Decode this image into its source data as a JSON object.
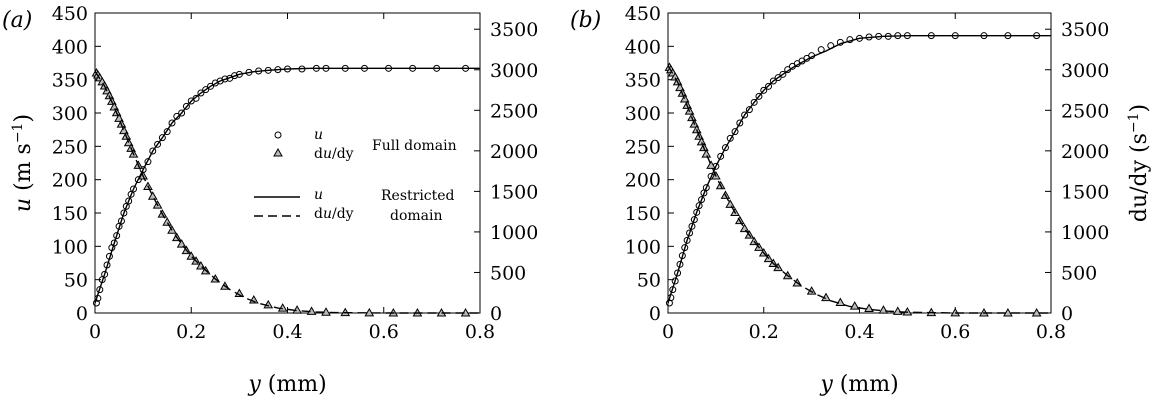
{
  "chart_data": [
    {
      "type": "line",
      "panel_label": "(a)",
      "xlabel_var": "y",
      "xlabel_unit": " (mm)",
      "ylabel_left_var": "u",
      "ylabel_left_unit": " (m s",
      "ylabel_left_sup": "−1",
      "ylabel_left_close": ")",
      "ylabel_right": "",
      "xlim": [
        0,
        0.8
      ],
      "ylim_left": [
        0,
        450
      ],
      "ylim_right": [
        0,
        3700
      ],
      "xticks": [
        "0",
        "0.2",
        "0.4",
        "0.6",
        "0.8"
      ],
      "yticks_left": [
        "0",
        "50",
        "100",
        "150",
        "200",
        "250",
        "300",
        "350",
        "400",
        "450"
      ],
      "yticks_right": [
        "0",
        "500",
        "1000",
        "1500",
        "2000",
        "2500",
        "3000",
        "3500"
      ],
      "u_free": 367,
      "du0": 2960,
      "u_scale": 0.115,
      "du_scale": 0.105,
      "legend": {
        "full_u": "u",
        "full_du": "du/dy",
        "full_label": "Full domain",
        "restricted_u": "u",
        "restricted_du": "du/dy",
        "restricted_label_line1": "Restricted",
        "restricted_label_line2": "domain"
      },
      "series": [
        {
          "name": "u",
          "axis": "left",
          "style": "circle",
          "x": [
            0.003,
            0.006,
            0.01,
            0.015,
            0.02,
            0.025,
            0.03,
            0.035,
            0.04,
            0.045,
            0.05,
            0.055,
            0.06,
            0.065,
            0.07,
            0.075,
            0.08,
            0.09,
            0.1,
            0.11,
            0.12,
            0.13,
            0.14,
            0.15,
            0.16,
            0.17,
            0.18,
            0.19,
            0.2,
            0.21,
            0.22,
            0.23,
            0.24,
            0.25,
            0.26,
            0.27,
            0.28,
            0.29,
            0.3,
            0.32,
            0.34,
            0.36,
            0.38,
            0.4,
            0.43,
            0.46,
            0.48,
            0.52,
            0.56,
            0.61,
            0.66,
            0.71,
            0.77
          ],
          "y": [
            15,
            22,
            35,
            50,
            58,
            72,
            85,
            98,
            105,
            116,
            130,
            138,
            150,
            160,
            168,
            178,
            186,
            200,
            215,
            227,
            243,
            253,
            263,
            272,
            285,
            295,
            300,
            310,
            318,
            322,
            330,
            335,
            340,
            345,
            348,
            351,
            352,
            356,
            358,
            361,
            363,
            364,
            365,
            366,
            366,
            367,
            367,
            367,
            367,
            367,
            367,
            367,
            367
          ]
        },
        {
          "name": "du/dy",
          "axis": "right",
          "style": "triangle",
          "x": [
            0.003,
            0.006,
            0.01,
            0.015,
            0.02,
            0.025,
            0.03,
            0.035,
            0.04,
            0.045,
            0.05,
            0.055,
            0.06,
            0.065,
            0.07,
            0.075,
            0.08,
            0.09,
            0.1,
            0.11,
            0.12,
            0.13,
            0.14,
            0.15,
            0.16,
            0.17,
            0.18,
            0.19,
            0.2,
            0.21,
            0.22,
            0.23,
            0.25,
            0.27,
            0.3,
            0.33,
            0.36,
            0.39,
            0.42,
            0.45,
            0.48,
            0.52,
            0.57,
            0.62,
            0.67,
            0.72,
            0.77
          ],
          "y": [
            2960,
            2935,
            2900,
            2850,
            2800,
            2740,
            2680,
            2610,
            2540,
            2470,
            2400,
            2330,
            2250,
            2180,
            2100,
            2030,
            1960,
            1820,
            1690,
            1560,
            1440,
            1330,
            1220,
            1120,
            1020,
            930,
            850,
            770,
            700,
            640,
            580,
            520,
            420,
            330,
            240,
            160,
            100,
            60,
            35,
            20,
            10,
            5,
            2,
            0,
            0,
            0,
            0
          ]
        },
        {
          "name": "u",
          "axis": "left",
          "style": "solid",
          "x": [
            0,
            0.02,
            0.04,
            0.06,
            0.08,
            0.1,
            0.12,
            0.14,
            0.16,
            0.18,
            0.2,
            0.22,
            0.24,
            0.26,
            0.28,
            0.3,
            0.33,
            0.36,
            0.4,
            0.45,
            0.5,
            0.6,
            0.7,
            0.8
          ],
          "y": [
            15,
            58,
            105,
            150,
            186,
            215,
            243,
            263,
            285,
            300,
            318,
            330,
            340,
            348,
            353,
            358,
            362,
            364,
            366,
            367,
            367,
            367,
            367,
            367
          ]
        },
        {
          "name": "du/dy",
          "axis": "right",
          "style": "dashed",
          "x": [
            0,
            0.02,
            0.04,
            0.06,
            0.08,
            0.1,
            0.12,
            0.14,
            0.16,
            0.18,
            0.2,
            0.22,
            0.25,
            0.28,
            0.31,
            0.34,
            0.38,
            0.42,
            0.46,
            0.5,
            0.6,
            0.7,
            0.8
          ],
          "y": [
            2980,
            2800,
            2540,
            2250,
            1960,
            1690,
            1440,
            1220,
            1020,
            850,
            700,
            580,
            420,
            290,
            190,
            120,
            60,
            30,
            12,
            5,
            0,
            0,
            0
          ]
        }
      ]
    },
    {
      "type": "line",
      "panel_label": "(b)",
      "xlabel_var": "y",
      "xlabel_unit": " (mm)",
      "ylabel_left_var": "",
      "ylabel_left_unit": "",
      "ylabel_left_sup": "",
      "ylabel_left_close": "",
      "ylabel_right": "du/dy (s",
      "ylabel_right_sup": "−1",
      "ylabel_right_close": ")",
      "xlim": [
        0,
        0.8
      ],
      "ylim_left": [
        0,
        450
      ],
      "ylim_right": [
        0,
        3700
      ],
      "xticks": [
        "0",
        "0.2",
        "0.4",
        "0.6",
        "0.8"
      ],
      "yticks_left": [
        "0",
        "50",
        "100",
        "150",
        "200",
        "250",
        "300",
        "350",
        "400",
        "450"
      ],
      "yticks_right": [
        "0",
        "500",
        "1000",
        "1500",
        "2000",
        "2500",
        "3000",
        "3500"
      ],
      "u_free": 416,
      "du0": 3030,
      "u_scale": 0.125,
      "du_scale": 0.11,
      "legend": null,
      "series": [
        {
          "name": "u",
          "axis": "left",
          "style": "circle",
          "x": [
            0.003,
            0.006,
            0.01,
            0.015,
            0.02,
            0.025,
            0.03,
            0.035,
            0.04,
            0.045,
            0.05,
            0.055,
            0.06,
            0.065,
            0.07,
            0.075,
            0.08,
            0.09,
            0.1,
            0.11,
            0.12,
            0.13,
            0.14,
            0.15,
            0.16,
            0.17,
            0.18,
            0.19,
            0.2,
            0.21,
            0.22,
            0.23,
            0.24,
            0.25,
            0.26,
            0.27,
            0.28,
            0.29,
            0.3,
            0.32,
            0.34,
            0.36,
            0.38,
            0.4,
            0.42,
            0.44,
            0.46,
            0.48,
            0.5,
            0.55,
            0.6,
            0.66,
            0.71,
            0.77
          ],
          "y": [
            15,
            23,
            35,
            48,
            60,
            73,
            86,
            98,
            109,
            120,
            130,
            140,
            151,
            161,
            170,
            180,
            188,
            205,
            220,
            235,
            248,
            262,
            272,
            285,
            297,
            305,
            316,
            325,
            334,
            340,
            348,
            353,
            358,
            365,
            370,
            374,
            378,
            382,
            386,
            395,
            401,
            406,
            410,
            412,
            414,
            415,
            415,
            416,
            416,
            416,
            416,
            416,
            416,
            416
          ]
        },
        {
          "name": "du/dy",
          "axis": "right",
          "style": "triangle",
          "x": [
            0.003,
            0.006,
            0.01,
            0.015,
            0.02,
            0.025,
            0.03,
            0.035,
            0.04,
            0.045,
            0.05,
            0.055,
            0.06,
            0.065,
            0.07,
            0.075,
            0.08,
            0.09,
            0.1,
            0.11,
            0.12,
            0.13,
            0.14,
            0.15,
            0.16,
            0.17,
            0.18,
            0.19,
            0.2,
            0.21,
            0.22,
            0.23,
            0.25,
            0.27,
            0.3,
            0.33,
            0.36,
            0.39,
            0.42,
            0.45,
            0.48,
            0.5,
            0.55,
            0.6,
            0.66,
            0.71,
            0.77
          ],
          "y": [
            3030,
            3000,
            2960,
            2910,
            2850,
            2780,
            2710,
            2640,
            2560,
            2490,
            2410,
            2330,
            2260,
            2180,
            2110,
            2040,
            1960,
            1820,
            1690,
            1570,
            1450,
            1340,
            1240,
            1140,
            1040,
            960,
            880,
            810,
            740,
            670,
            610,
            560,
            460,
            370,
            270,
            190,
            130,
            85,
            55,
            35,
            20,
            12,
            5,
            2,
            0,
            0,
            0
          ]
        },
        {
          "name": "u",
          "axis": "left",
          "style": "solid",
          "x": [
            0,
            0.02,
            0.04,
            0.06,
            0.08,
            0.1,
            0.12,
            0.14,
            0.16,
            0.18,
            0.2,
            0.22,
            0.24,
            0.26,
            0.28,
            0.3,
            0.33,
            0.36,
            0.4,
            0.45,
            0.5,
            0.6,
            0.7,
            0.8
          ],
          "y": [
            15,
            60,
            109,
            151,
            188,
            220,
            248,
            272,
            297,
            316,
            334,
            348,
            358,
            368,
            376,
            384,
            393,
            404,
            412,
            415,
            416,
            416,
            416,
            416
          ]
        },
        {
          "name": "du/dy",
          "axis": "right",
          "style": "dashed",
          "x": [
            0,
            0.02,
            0.04,
            0.06,
            0.08,
            0.1,
            0.12,
            0.14,
            0.16,
            0.18,
            0.2,
            0.22,
            0.25,
            0.28,
            0.31,
            0.34,
            0.38,
            0.42,
            0.46,
            0.5,
            0.6,
            0.7,
            0.8
          ],
          "y": [
            3050,
            2850,
            2560,
            2260,
            1960,
            1690,
            1450,
            1240,
            1040,
            880,
            740,
            610,
            460,
            330,
            230,
            150,
            80,
            45,
            22,
            10,
            0,
            0,
            0
          ]
        }
      ]
    }
  ]
}
